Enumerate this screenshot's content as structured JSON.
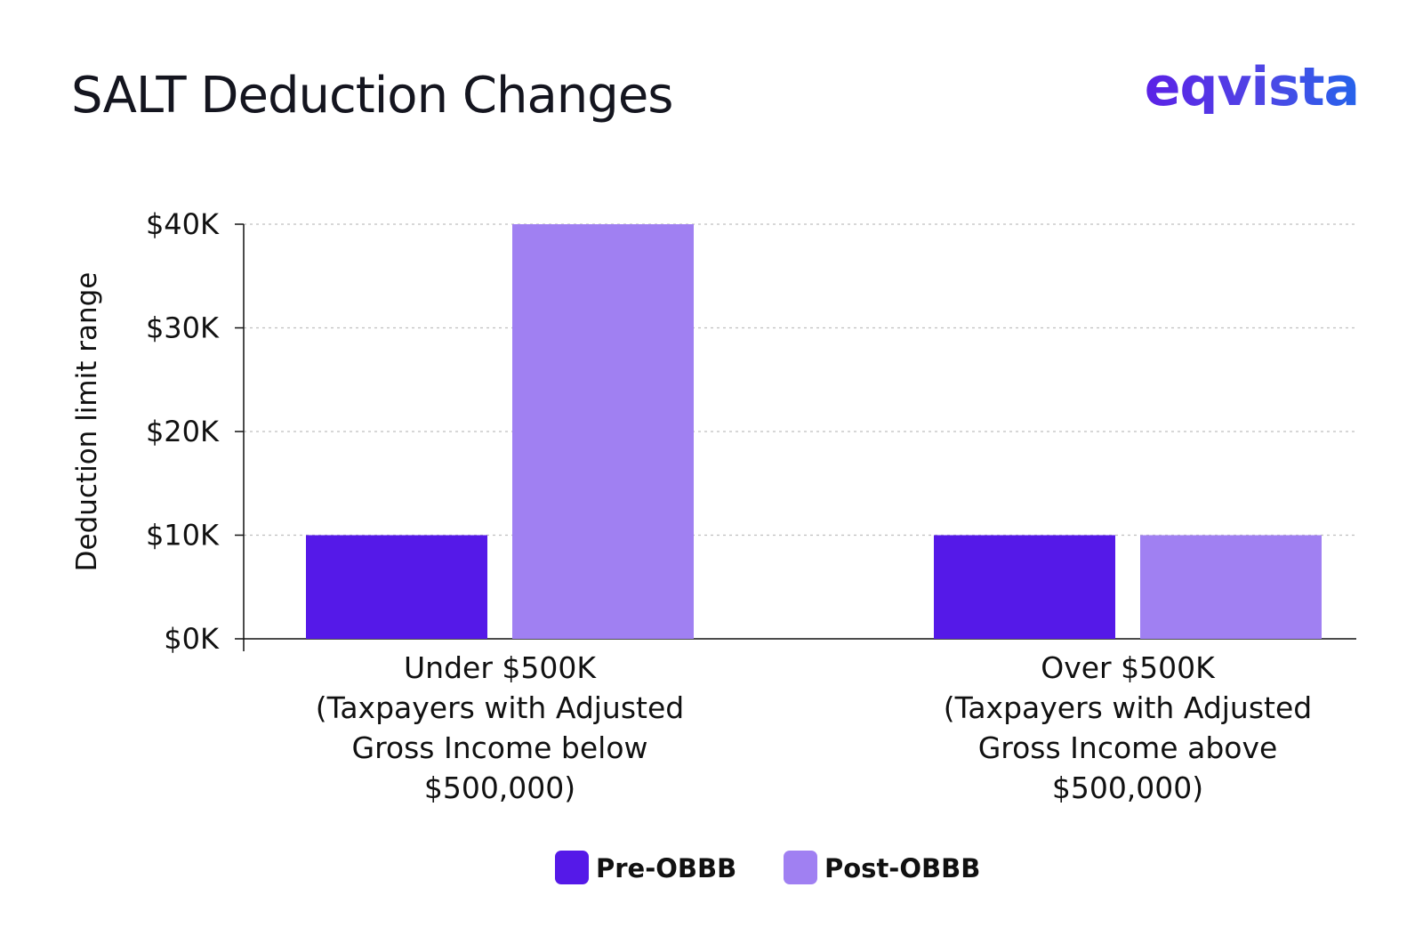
{
  "header": {
    "title": "SALT Deduction Changes",
    "brand": "eqvista"
  },
  "chart_data": {
    "type": "bar",
    "title": "SALT Deduction Changes",
    "ylabel": "Deduction limit range",
    "xlabel": "",
    "ylim": [
      0,
      40000
    ],
    "yticks": [
      "$0K",
      "$10K",
      "$20K",
      "$30K",
      "$40K"
    ],
    "grid": true,
    "legend_position": "bottom-center",
    "categories": [
      [
        "Under $500K",
        "(Taxpayers with Adjusted",
        "Gross Income below",
        "$500,000)"
      ],
      [
        "Over $500K",
        "(Taxpayers with Adjusted",
        "Gross Income above",
        "$500,000)"
      ]
    ],
    "series": [
      {
        "name": "Pre-OBBB",
        "values": [
          10000,
          10000
        ],
        "color": "#5519e8"
      },
      {
        "name": "Post-OBBB",
        "values": [
          40000,
          10000
        ],
        "color": "#a080f2"
      }
    ]
  },
  "colors": {
    "title": "#14151f",
    "axis": "#111111",
    "grid": "#bfbfbf"
  }
}
